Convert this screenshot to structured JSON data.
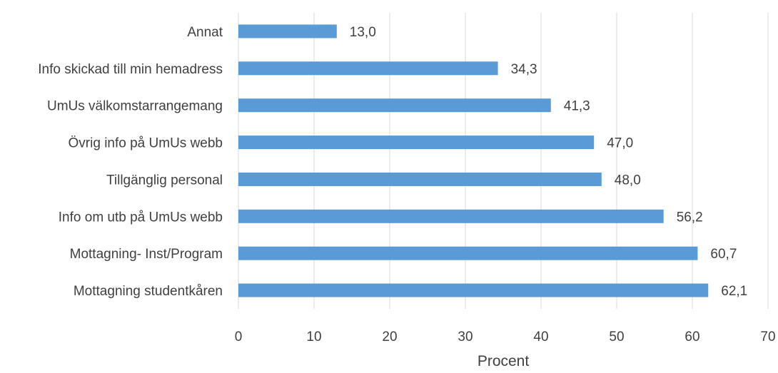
{
  "chart_data": {
    "type": "bar",
    "orientation": "horizontal",
    "categories": [
      "Annat",
      "Info skickad till min hemadress",
      "UmUs välkomstarrangemang",
      "Övrig info på UmUs webb",
      "Tillgänglig personal",
      "Info om utb på UmUs webb",
      "Mottagning- Inst/Program",
      "Mottagning studentkåren"
    ],
    "values": [
      13.0,
      34.3,
      41.3,
      47.0,
      48.0,
      56.2,
      60.7,
      62.1
    ],
    "value_labels": [
      "13,0",
      "34,3",
      "41,3",
      "47,0",
      "48,0",
      "56,2",
      "60,7",
      "62,1"
    ],
    "xlabel": "Procent",
    "xlim": [
      0,
      70
    ],
    "xticks": [
      0,
      10,
      20,
      30,
      40,
      50,
      60,
      70
    ],
    "grid": true,
    "bar_color": "#5b9bd5"
  }
}
